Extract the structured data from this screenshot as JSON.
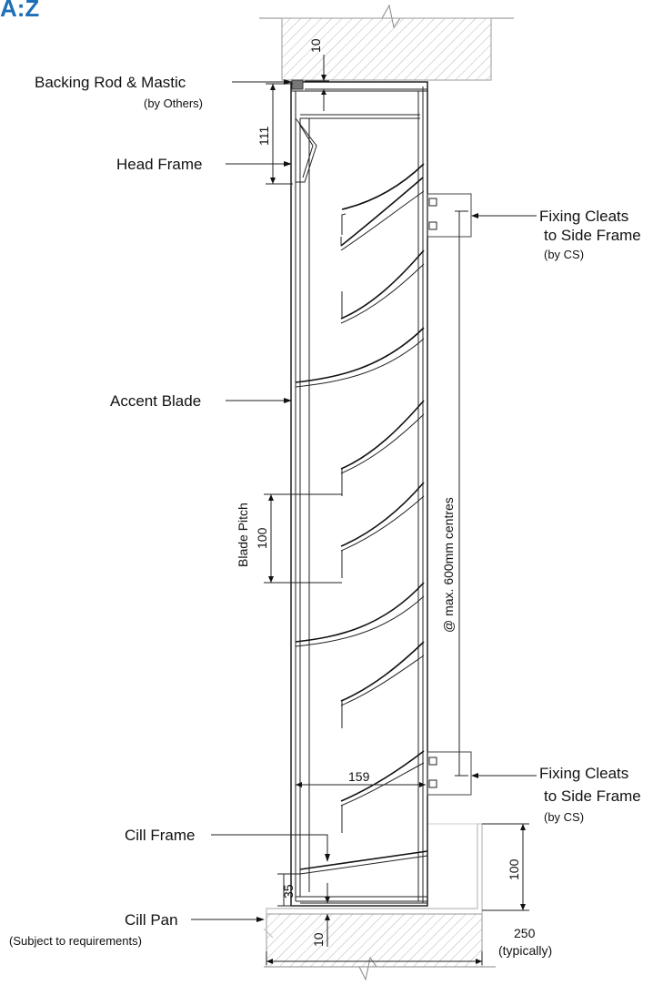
{
  "logo": {
    "text": "A:Z"
  },
  "labels": {
    "backing_rod": "Backing Rod & Mastic",
    "backing_rod_note": "(by Others)",
    "head_frame": "Head Frame",
    "accent_blade": "Accent Blade",
    "fixing_cleats_top_1": "Fixing Cleats",
    "fixing_cleats_top_2": "to Side Frame",
    "fixing_cleats_top_note": "(by CS)",
    "fixing_cleats_bottom_1": "Fixing Cleats",
    "fixing_cleats_bottom_2": "to Side Frame",
    "fixing_cleats_bottom_note": "(by CS)",
    "cill_frame": "Cill Frame",
    "cill_pan": "Cill Pan",
    "cill_pan_note": "(Subject to requirements)",
    "blade_pitch": "Blade Pitch",
    "centres": "@ max. 600mm centres",
    "typically": "(typically)"
  },
  "dimensions": {
    "top_gap": "10",
    "head_frame": "111",
    "blade_pitch": "100",
    "frame_depth": "159",
    "cill_height": "35",
    "bottom_gap": "10",
    "cill_upstand": "100",
    "cill_pan_width": "250"
  }
}
